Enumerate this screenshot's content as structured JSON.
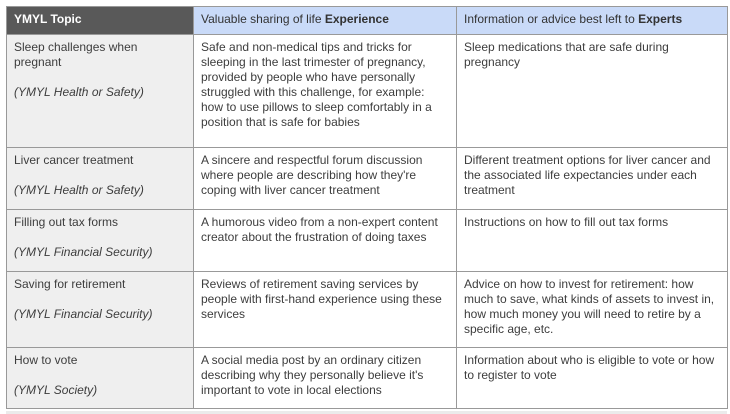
{
  "colors": {
    "header_topic_bg": "#595959",
    "header_topic_text": "#ffffff",
    "header_blue_bg": "#c9daf8",
    "topic_column_bg": "#efefef",
    "body_bg": "#ffffff",
    "border": "#999999",
    "text": "#3d3d3d"
  },
  "table": {
    "header": {
      "topic": "YMYL Topic",
      "experience_prefix": "Valuable sharing of life ",
      "experience_bold": "Experience",
      "experts_prefix": "Information or advice best left to ",
      "experts_bold": "Experts"
    },
    "rows": [
      {
        "topic": "Sleep challenges when pregnant",
        "category": "(YMYL Health or Safety)",
        "experience": "Safe and non-medical tips and tricks for sleeping in the last trimester of pregnancy, provided by people who have personally struggled with this challenge, for example: how to use pillows to sleep comfortably in a position that is safe for babies",
        "experts": "Sleep medications that are safe during pregnancy"
      },
      {
        "topic": "Liver cancer treatment",
        "category": "(YMYL Health or Safety)",
        "experience": "A sincere and respectful forum discussion where people are describing how they're coping with liver cancer treatment",
        "experts": "Different treatment options for liver cancer and the associated life expectancies under each treatment"
      },
      {
        "topic": "Filling out tax forms",
        "category": "(YMYL Financial Security)",
        "experience": "A humorous video from a non-expert content creator about the frustration of doing taxes",
        "experts": "Instructions on how to fill out tax forms"
      },
      {
        "topic": "Saving for retirement",
        "category": "(YMYL Financial Security)",
        "experience": "Reviews of retirement saving services by people with first-hand experience using these services",
        "experts": "Advice on how to invest for retirement: how much to save, what kinds of assets to invest in, how much money you will need to retire by a specific age, etc."
      },
      {
        "topic": "How to vote",
        "category": "(YMYL Society)",
        "experience": "A social media post by an ordinary citizen describing why they personally believe it's important to vote in local elections",
        "experts": "Information about who is eligible to vote or how to register to vote"
      }
    ]
  }
}
